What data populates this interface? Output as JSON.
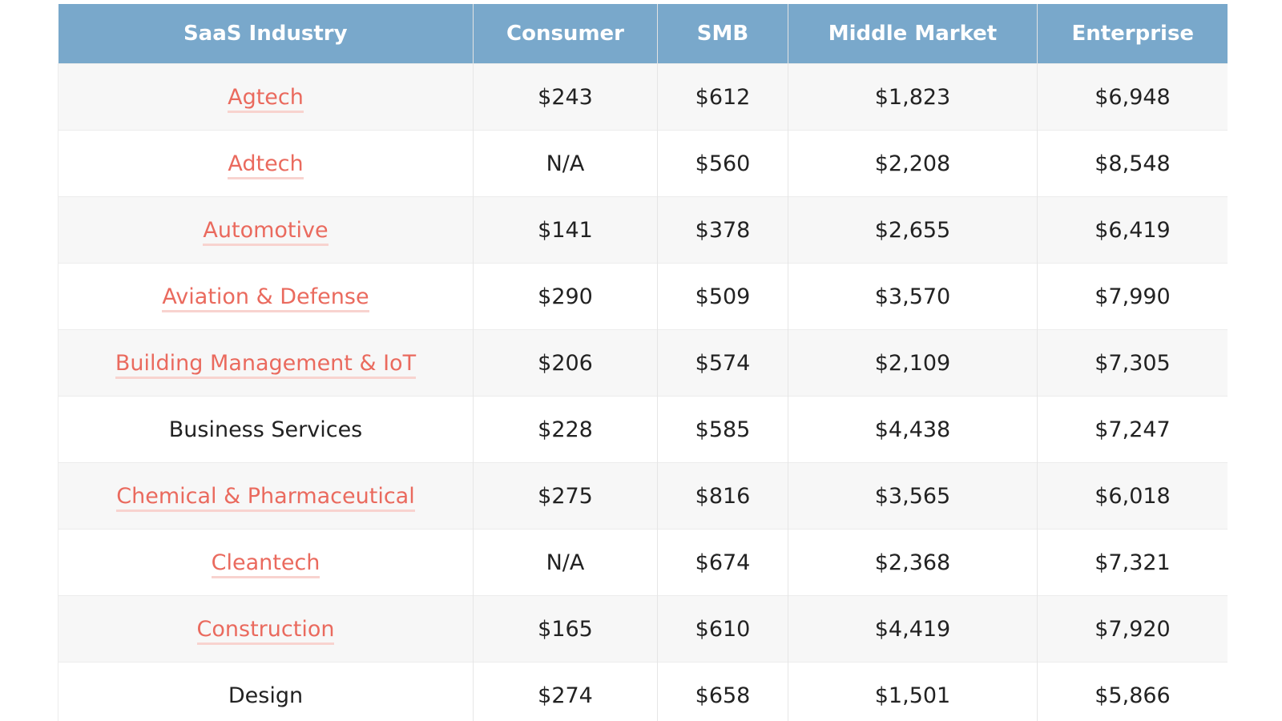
{
  "table": {
    "header": [
      "SaaS Industry",
      "Consumer",
      "SMB",
      "Middle Market",
      "Enterprise"
    ],
    "rows": [
      {
        "link": true,
        "cells": [
          "Agtech",
          "$243",
          "$612",
          "$1,823",
          "$6,948"
        ]
      },
      {
        "link": true,
        "cells": [
          "Adtech",
          "N/A",
          "$560",
          "$2,208",
          "$8,548"
        ]
      },
      {
        "link": true,
        "cells": [
          "Automotive",
          "$141",
          "$378",
          "$2,655",
          "$6,419"
        ]
      },
      {
        "link": true,
        "cells": [
          "Aviation & Defense",
          "$290",
          "$509",
          "$3,570",
          "$7,990"
        ]
      },
      {
        "link": true,
        "cells": [
          "Building Management & IoT",
          "$206",
          "$574",
          "$2,109",
          "$7,305"
        ]
      },
      {
        "link": false,
        "cells": [
          "Business Services",
          "$228",
          "$585",
          "$4,438",
          "$7,247"
        ]
      },
      {
        "link": true,
        "cells": [
          "Chemical & Pharmaceutical",
          "$275",
          "$816",
          "$3,565",
          "$6,018"
        ]
      },
      {
        "link": true,
        "cells": [
          "Cleantech",
          "N/A",
          "$674",
          "$2,368",
          "$7,321"
        ]
      },
      {
        "link": true,
        "cells": [
          "Construction",
          "$165",
          "$610",
          "$4,419",
          "$7,920"
        ]
      },
      {
        "link": false,
        "cells": [
          "Design",
          "$274",
          "$658",
          "$1,501",
          "$5,866"
        ]
      }
    ]
  }
}
